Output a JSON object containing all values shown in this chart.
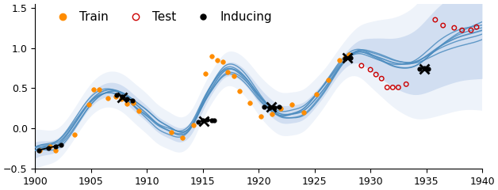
{
  "xlim": [
    1900,
    1940
  ],
  "ylim": [
    -0.5,
    1.55
  ],
  "yticks": [
    -0.5,
    0.0,
    0.5,
    1.0,
    1.5
  ],
  "xticks": [
    1900,
    1905,
    1910,
    1915,
    1920,
    1925,
    1930,
    1935,
    1940
  ],
  "train_color": "#FF8C00",
  "test_color": "#CC0000",
  "inducing_color": "#000000",
  "line_color": "#4C8CBF",
  "shade_color": "#AEC6E8",
  "shade_inner_alpha": 0.45,
  "shade_outer_alpha": 0.2,
  "line_alpha": 0.85,
  "line_width": 1.0,
  "legend_fontsize": 11,
  "mean_knots_x": [
    1900,
    1901,
    1902,
    1903,
    1905,
    1907,
    1908,
    1909,
    1910,
    1911,
    1912,
    1913,
    1914,
    1915,
    1916,
    1917,
    1918,
    1919,
    1920,
    1921,
    1922,
    1923,
    1924,
    1925,
    1926,
    1927,
    1928,
    1929,
    1930,
    1931,
    1932,
    1933,
    1934,
    1935,
    1936,
    1937,
    1938,
    1939,
    1940
  ],
  "mean_knots_y": [
    -0.27,
    -0.24,
    -0.2,
    -0.05,
    0.35,
    0.48,
    0.42,
    0.3,
    0.18,
    0.05,
    -0.03,
    -0.08,
    0.02,
    0.3,
    0.55,
    0.72,
    0.72,
    0.6,
    0.42,
    0.27,
    0.18,
    0.18,
    0.22,
    0.35,
    0.52,
    0.72,
    0.88,
    0.95,
    0.92,
    0.87,
    0.82,
    0.8,
    0.82,
    0.9,
    1.0,
    1.08,
    1.14,
    1.18,
    1.22
  ],
  "std_knots_x": [
    1900,
    1905,
    1910,
    1915,
    1920,
    1925,
    1928,
    1930,
    1932,
    1934,
    1936,
    1938,
    1940
  ],
  "std_knots_y": [
    0.1,
    0.08,
    0.1,
    0.08,
    0.1,
    0.1,
    0.1,
    0.2,
    0.3,
    0.4,
    0.5,
    0.55,
    0.6
  ],
  "std2_knots_y": [
    0.25,
    0.2,
    0.25,
    0.2,
    0.25,
    0.25,
    0.25,
    0.4,
    0.55,
    0.7,
    0.85,
    0.92,
    1.0
  ],
  "sample_offsets": [
    {
      "amp": 0.06,
      "freq": 0.45,
      "phase": 0.0,
      "trend": 0.0
    },
    {
      "amp": 0.05,
      "freq": 0.5,
      "phase": 0.8,
      "trend": 0.02
    },
    {
      "amp": 0.04,
      "freq": 0.4,
      "phase": 1.6,
      "trend": -0.01
    },
    {
      "amp": 0.05,
      "freq": 0.48,
      "phase": 2.5,
      "trend": 0.015
    },
    {
      "amp": 0.06,
      "freq": 0.42,
      "phase": 3.2,
      "trend": -0.02
    }
  ],
  "train_x": [
    1900.4,
    1901.3,
    1901.8,
    1903.5,
    1904.8,
    1905.2,
    1905.7,
    1906.5,
    1907.2,
    1907.7,
    1908.2,
    1908.8,
    1909.3,
    1912.2,
    1913.2,
    1914.2,
    1915.2,
    1915.8,
    1916.3,
    1916.8,
    1917.2,
    1917.8,
    1918.3,
    1919.2,
    1920.2,
    1921.2,
    1922.0,
    1923.0,
    1924.0,
    1925.2,
    1926.2,
    1927.2,
    1927.7,
    1928.1
  ],
  "train_y": [
    -0.27,
    -0.22,
    -0.27,
    -0.08,
    0.3,
    0.48,
    0.48,
    0.38,
    0.4,
    0.37,
    0.31,
    0.32,
    0.22,
    -0.05,
    -0.12,
    0.04,
    0.68,
    0.9,
    0.85,
    0.83,
    0.7,
    0.65,
    0.46,
    0.32,
    0.15,
    0.18,
    0.25,
    0.3,
    0.2,
    0.43,
    0.6,
    0.85,
    0.88,
    0.92
  ],
  "test_x": [
    1929.2,
    1930.0,
    1930.5,
    1931.0,
    1931.5,
    1932.0,
    1932.5,
    1933.2,
    1935.8,
    1936.5,
    1937.5,
    1938.2,
    1939.0,
    1939.5
  ],
  "test_y": [
    0.78,
    0.73,
    0.67,
    0.62,
    0.51,
    0.51,
    0.51,
    0.55,
    1.35,
    1.28,
    1.25,
    1.22,
    1.22,
    1.26
  ],
  "inducing_clusters": [
    {
      "x": [
        1900.3,
        1901.2,
        1901.8,
        1902.3
      ],
      "y": [
        -0.27,
        -0.24,
        -0.22,
        -0.2
      ]
    },
    {
      "x": [
        1907.3,
        1907.8,
        1908.2,
        1908.7
      ],
      "y": [
        0.42,
        0.4,
        0.37,
        0.35
      ]
    },
    {
      "x": [
        1914.6,
        1915.0,
        1915.4,
        1915.8,
        1916.0
      ],
      "y": [
        0.08,
        0.1,
        0.11,
        0.1,
        0.1
      ]
    },
    {
      "x": [
        1920.5,
        1921.0,
        1921.4,
        1921.8
      ],
      "y": [
        0.27,
        0.26,
        0.26,
        0.27
      ]
    },
    {
      "x": [
        1927.7,
        1928.2
      ],
      "y": [
        0.87,
        0.88
      ]
    },
    {
      "x": [
        1934.4,
        1934.8,
        1935.2
      ],
      "y": [
        0.74,
        0.75,
        0.74
      ]
    }
  ]
}
